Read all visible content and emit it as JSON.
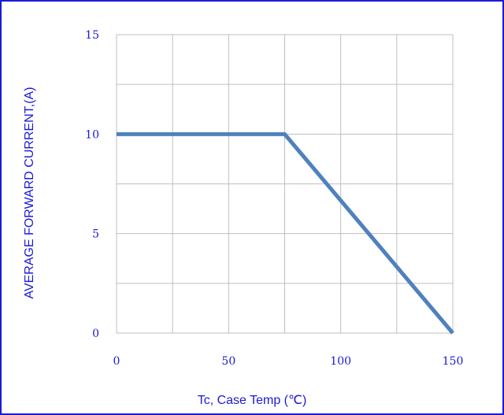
{
  "colors": {
    "frame": "#1a1ad6",
    "text": "#1a1ad6",
    "grid": "#bfbfbf",
    "series": "#4f81bd"
  },
  "chart_data": {
    "type": "line",
    "title": "",
    "xlabel": "Tc, Case Temp (℃)",
    "ylabel": "AVERAGE FORWARD CURRENT,(A)",
    "xlim": [
      0,
      150
    ],
    "ylim": [
      0,
      15
    ],
    "x_ticks": [
      "0",
      "50",
      "100",
      "150"
    ],
    "y_ticks": [
      "0",
      "5",
      "10",
      "15"
    ],
    "x_gridlines": [
      0,
      25,
      50,
      75,
      100,
      125,
      150
    ],
    "y_gridlines": [
      0,
      2.5,
      5,
      7.5,
      10,
      12.5,
      15
    ],
    "grid": true,
    "legend": "none",
    "series": [
      {
        "x": [
          0,
          75,
          150
        ],
        "y": [
          10,
          10,
          0
        ]
      }
    ]
  }
}
